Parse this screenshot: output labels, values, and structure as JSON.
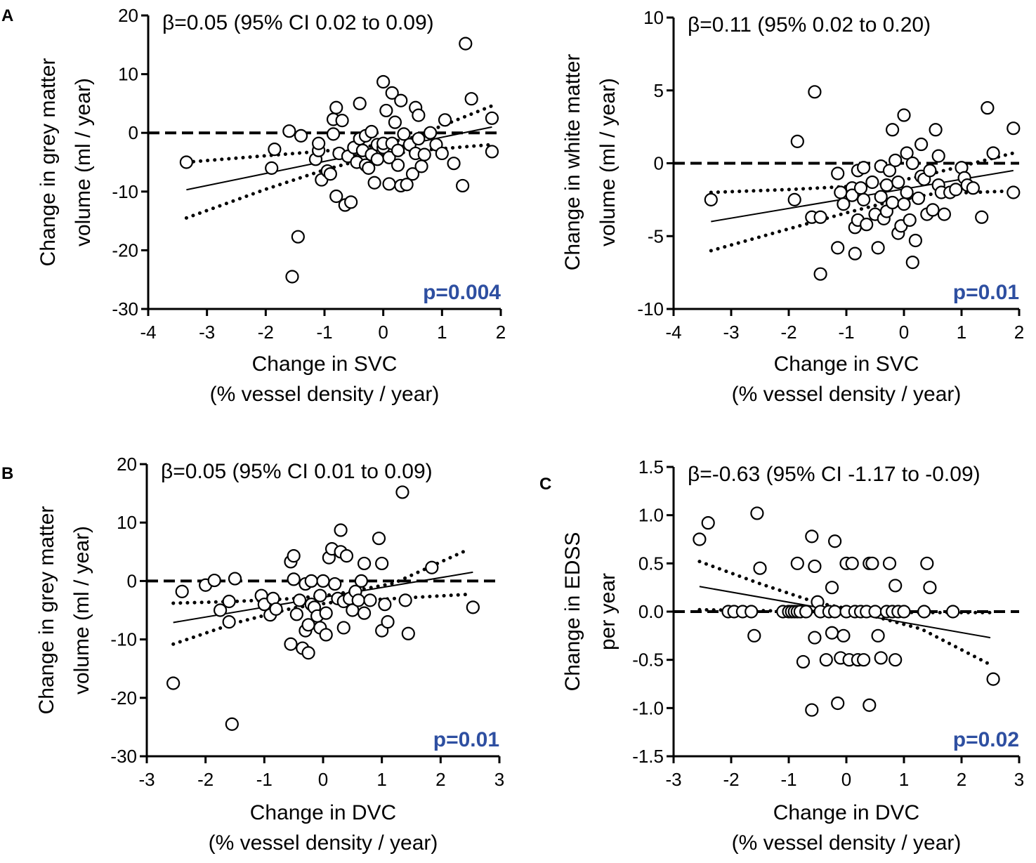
{
  "chart_data": [
    {
      "type": "scatter",
      "panel_label": "A",
      "annotation": "β=0.05 (95% CI 0.02 to 0.09)",
      "p_value": "p=0.004",
      "xlabel": [
        "Change in SVC",
        "(% vessel density / year)"
      ],
      "ylabel": [
        "Change in grey matter",
        "volume (ml / year)"
      ],
      "xlim": [
        -4,
        2
      ],
      "ylim": [
        -30,
        20
      ],
      "xticks": [
        -4,
        -3,
        -2,
        -1,
        0,
        1,
        2
      ],
      "yticks": [
        -30,
        -20,
        -10,
        0,
        10,
        20
      ],
      "reference_line": 0,
      "fit": {
        "x": [
          -3.35,
          1.85
        ],
        "y": [
          -9.7,
          1.0
        ]
      },
      "ci_lower": {
        "x": [
          -3.35,
          -2.0,
          -1.0,
          -0.3,
          0.5,
          1.85
        ],
        "y": [
          -14.5,
          -9.6,
          -6.3,
          -4.4,
          -3.1,
          -2.0
        ]
      },
      "ci_upper": {
        "x": [
          -3.35,
          -2.0,
          -1.0,
          -0.3,
          0.5,
          1.85
        ],
        "y": [
          -5.0,
          -3.9,
          -3.1,
          -2.4,
          -0.8,
          4.6
        ]
      },
      "points": [
        [
          -3.35,
          -5.0
        ],
        [
          -1.9,
          -6.0
        ],
        [
          -1.85,
          -2.8
        ],
        [
          -1.6,
          0.3
        ],
        [
          -1.55,
          -24.5
        ],
        [
          -1.45,
          -17.7
        ],
        [
          -1.4,
          -0.5
        ],
        [
          -1.15,
          -4.5
        ],
        [
          -1.1,
          -3.0
        ],
        [
          -1.05,
          -8.0
        ],
        [
          -1.1,
          -1.8
        ],
        [
          -0.95,
          -6.5
        ],
        [
          -0.9,
          -7.0
        ],
        [
          -0.85,
          2.3
        ],
        [
          -0.8,
          4.3
        ],
        [
          -0.85,
          -0.2
        ],
        [
          -0.8,
          -10.8
        ],
        [
          -0.75,
          -3.5
        ],
        [
          -0.7,
          2.1
        ],
        [
          -0.65,
          -12.3
        ],
        [
          -0.6,
          -4.0
        ],
        [
          -0.55,
          -11.8
        ],
        [
          -0.5,
          -2.5
        ],
        [
          -0.45,
          -5.0
        ],
        [
          -0.4,
          5.0
        ],
        [
          -0.4,
          -1.0
        ],
        [
          -0.35,
          -3.0
        ],
        [
          -0.3,
          -5.5
        ],
        [
          -0.3,
          -0.5
        ],
        [
          -0.25,
          -6.0
        ],
        [
          -0.2,
          0.2
        ],
        [
          -0.2,
          -3.7
        ],
        [
          -0.15,
          -8.5
        ],
        [
          -0.1,
          -2.0
        ],
        [
          -0.1,
          -4.5
        ],
        [
          0.0,
          -2.5
        ],
        [
          0.0,
          -1.8
        ],
        [
          0.0,
          8.7
        ],
        [
          0.05,
          3.8
        ],
        [
          0.1,
          -4.2
        ],
        [
          0.1,
          -8.7
        ],
        [
          0.15,
          6.8
        ],
        [
          0.15,
          -1.8
        ],
        [
          0.2,
          1.8
        ],
        [
          0.25,
          -5.5
        ],
        [
          0.25,
          -3.0
        ],
        [
          0.3,
          5.5
        ],
        [
          0.3,
          -9.0
        ],
        [
          0.35,
          -0.2
        ],
        [
          0.4,
          -8.8
        ],
        [
          0.45,
          -2.0
        ],
        [
          0.5,
          -7.0
        ],
        [
          0.55,
          4.3
        ],
        [
          0.55,
          -3.5
        ],
        [
          0.6,
          -1.0
        ],
        [
          0.6,
          3.0
        ],
        [
          0.65,
          -5.7
        ],
        [
          0.7,
          -3.7
        ],
        [
          0.8,
          0.0
        ],
        [
          0.9,
          -2.0
        ],
        [
          1.0,
          -3.5
        ],
        [
          1.05,
          2.2
        ],
        [
          1.2,
          -5.2
        ],
        [
          1.35,
          -9.0
        ],
        [
          1.4,
          15.2
        ],
        [
          1.5,
          5.8
        ],
        [
          1.85,
          2.5
        ],
        [
          1.85,
          -3.2
        ]
      ]
    },
    {
      "type": "scatter",
      "panel_label": "",
      "annotation": "β=0.11 (95% 0.02 to 0.20)",
      "p_value": "p=0.01",
      "xlabel": [
        "Change in SVC",
        "(% vessel density / year)"
      ],
      "ylabel": [
        "Change in white matter",
        "volume (ml / year)"
      ],
      "xlim": [
        -4,
        2
      ],
      "ylim": [
        -10,
        10
      ],
      "xticks": [
        -4,
        -3,
        -2,
        -1,
        0,
        1,
        2
      ],
      "yticks": [
        -10,
        -5,
        0,
        5,
        10
      ],
      "reference_line": 0,
      "fit": {
        "x": [
          -3.35,
          1.9
        ],
        "y": [
          -4.0,
          -0.5
        ]
      },
      "ci_lower": {
        "x": [
          -3.35,
          -2.0,
          -1.0,
          -0.3,
          0.5,
          1.9
        ],
        "y": [
          -6.0,
          -4.5,
          -3.4,
          -2.7,
          -2.1,
          -1.9
        ]
      },
      "ci_upper": {
        "x": [
          -3.35,
          -2.0,
          -1.0,
          -0.3,
          0.5,
          1.9
        ],
        "y": [
          -2.0,
          -1.8,
          -1.6,
          -1.4,
          -0.7,
          0.7
        ]
      },
      "points": [
        [
          -3.35,
          -2.5
        ],
        [
          -1.9,
          -2.5
        ],
        [
          -1.85,
          1.5
        ],
        [
          -1.6,
          -3.7
        ],
        [
          -1.55,
          4.9
        ],
        [
          -1.45,
          -7.6
        ],
        [
          -1.45,
          -3.7
        ],
        [
          -1.15,
          -5.8
        ],
        [
          -1.15,
          -0.7
        ],
        [
          -1.1,
          -2.0
        ],
        [
          -1.05,
          -2.8
        ],
        [
          -0.9,
          -1.7
        ],
        [
          -0.9,
          -2.2
        ],
        [
          -0.85,
          -6.2
        ],
        [
          -0.85,
          -4.4
        ],
        [
          -0.8,
          -0.5
        ],
        [
          -0.8,
          -3.9
        ],
        [
          -0.75,
          -1.7
        ],
        [
          -0.7,
          -0.3
        ],
        [
          -0.7,
          -2.5
        ],
        [
          -0.65,
          -4.2
        ],
        [
          -0.55,
          -1.3
        ],
        [
          -0.5,
          -3.5
        ],
        [
          -0.45,
          -5.8
        ],
        [
          -0.4,
          -2.3
        ],
        [
          -0.4,
          -0.2
        ],
        [
          -0.35,
          -3.8
        ],
        [
          -0.3,
          -1.5
        ],
        [
          -0.3,
          -3.3
        ],
        [
          -0.25,
          -0.5
        ],
        [
          -0.2,
          2.3
        ],
        [
          -0.2,
          -2.7
        ],
        [
          -0.15,
          0.2
        ],
        [
          -0.1,
          -4.8
        ],
        [
          -0.1,
          -1.3
        ],
        [
          -0.05,
          -4.3
        ],
        [
          0.0,
          -2.8
        ],
        [
          0.0,
          3.3
        ],
        [
          0.05,
          0.7
        ],
        [
          0.05,
          -2.0
        ],
        [
          0.1,
          -3.9
        ],
        [
          0.15,
          -6.8
        ],
        [
          0.15,
          0.0
        ],
        [
          0.2,
          -5.3
        ],
        [
          0.25,
          -2.4
        ],
        [
          0.3,
          -0.9
        ],
        [
          0.3,
          1.3
        ],
        [
          0.35,
          -1.1
        ],
        [
          0.4,
          -3.5
        ],
        [
          0.45,
          -0.5
        ],
        [
          0.5,
          -3.2
        ],
        [
          0.55,
          2.3
        ],
        [
          0.6,
          0.5
        ],
        [
          0.6,
          -1.5
        ],
        [
          0.65,
          -2.0
        ],
        [
          0.7,
          -3.5
        ],
        [
          0.8,
          -2.0
        ],
        [
          0.9,
          -1.8
        ],
        [
          1.0,
          -0.3
        ],
        [
          1.05,
          -1.0
        ],
        [
          1.1,
          -1.5
        ],
        [
          1.2,
          -1.7
        ],
        [
          1.35,
          -3.7
        ],
        [
          1.45,
          3.8
        ],
        [
          1.55,
          0.7
        ],
        [
          1.9,
          2.4
        ],
        [
          1.9,
          -2.0
        ]
      ]
    },
    {
      "type": "scatter",
      "panel_label": "B",
      "annotation": "β=0.05 (95% CI 0.01 to 0.09)",
      "p_value": "p=0.01",
      "xlabel": [
        "Change in DVC",
        "(% vessel density / year)"
      ],
      "ylabel": [
        "Change in grey matter",
        "volume (ml / year)"
      ],
      "xlim": [
        -3,
        3
      ],
      "ylim": [
        -30,
        20
      ],
      "xticks": [
        -3,
        -2,
        -1,
        0,
        1,
        2,
        3
      ],
      "yticks": [
        -30,
        -20,
        -10,
        0,
        10,
        20
      ],
      "reference_line": 0,
      "fit": {
        "x": [
          -2.55,
          2.55
        ],
        "y": [
          -7.1,
          1.5
        ]
      },
      "ci_lower": {
        "x": [
          -2.55,
          -1.5,
          -0.5,
          0.2,
          1.2,
          2.45
        ],
        "y": [
          -10.8,
          -7.2,
          -4.6,
          -3.6,
          -3.0,
          -2.3
        ]
      },
      "ci_upper": {
        "x": [
          -2.55,
          -1.5,
          -0.5,
          0.2,
          1.2,
          2.45
        ],
        "y": [
          -3.8,
          -3.5,
          -3.0,
          -2.3,
          -0.4,
          5.3
        ]
      },
      "points": [
        [
          -2.55,
          -17.5
        ],
        [
          -2.4,
          -1.8
        ],
        [
          -2.0,
          -0.7
        ],
        [
          -1.85,
          0.1
        ],
        [
          -1.75,
          -5.0
        ],
        [
          -1.6,
          -3.5
        ],
        [
          -1.6,
          -7.0
        ],
        [
          -1.55,
          -24.5
        ],
        [
          -1.5,
          0.4
        ],
        [
          -1.05,
          -2.5
        ],
        [
          -1.0,
          -4.0
        ],
        [
          -0.9,
          -5.8
        ],
        [
          -0.85,
          -3.0
        ],
        [
          -0.8,
          -4.8
        ],
        [
          -0.55,
          -10.8
        ],
        [
          -0.55,
          3.3
        ],
        [
          -0.5,
          4.3
        ],
        [
          -0.5,
          0.3
        ],
        [
          -0.45,
          -5.7
        ],
        [
          -0.4,
          -3.3
        ],
        [
          -0.35,
          -11.5
        ],
        [
          -0.3,
          -0.5
        ],
        [
          -0.3,
          -8.5
        ],
        [
          -0.25,
          -12.3
        ],
        [
          -0.25,
          -7.5
        ],
        [
          -0.2,
          -4.0
        ],
        [
          -0.2,
          0.0
        ],
        [
          -0.15,
          -4.5
        ],
        [
          -0.1,
          -6.0
        ],
        [
          -0.05,
          -8.0
        ],
        [
          -0.05,
          -2.5
        ],
        [
          0.0,
          0.0
        ],
        [
          0.05,
          -5.5
        ],
        [
          0.05,
          -9.2
        ],
        [
          0.1,
          4.0
        ],
        [
          0.15,
          5.5
        ],
        [
          0.2,
          -0.5
        ],
        [
          0.25,
          -3.0
        ],
        [
          0.3,
          8.7
        ],
        [
          0.3,
          5.0
        ],
        [
          0.35,
          -8.0
        ],
        [
          0.35,
          -3.5
        ],
        [
          0.4,
          4.3
        ],
        [
          0.45,
          -3.0
        ],
        [
          0.5,
          -5.0
        ],
        [
          0.55,
          -1.8
        ],
        [
          0.6,
          -3.3
        ],
        [
          0.65,
          0.0
        ],
        [
          0.7,
          -5.5
        ],
        [
          0.7,
          3.0
        ],
        [
          0.8,
          -3.3
        ],
        [
          0.95,
          7.3
        ],
        [
          1.0,
          -8.5
        ],
        [
          1.0,
          3.0
        ],
        [
          1.05,
          -4.0
        ],
        [
          1.1,
          -7.0
        ],
        [
          1.35,
          15.2
        ],
        [
          1.4,
          -3.3
        ],
        [
          1.45,
          -9.0
        ],
        [
          1.85,
          2.3
        ],
        [
          2.55,
          -4.5
        ]
      ]
    },
    {
      "type": "scatter",
      "panel_label": "C",
      "annotation": "β=-0.63 (95% CI -1.17 to -0.09)",
      "p_value": "p=0.02",
      "xlabel": [
        "Change in DVC",
        "(% vessel density / year)"
      ],
      "ylabel": [
        "Change in EDSS",
        "per year"
      ],
      "xlim": [
        -3,
        3
      ],
      "ylim": [
        -1.5,
        1.5
      ],
      "xticks": [
        -3,
        -2,
        -1,
        0,
        1,
        2,
        3
      ],
      "yticks": [
        -1.5,
        -1.0,
        -0.5,
        0.0,
        0.5,
        1.0,
        1.5
      ],
      "reference_line": 0,
      "fit": {
        "x": [
          -2.55,
          2.5
        ],
        "y": [
          0.26,
          -0.27
        ]
      },
      "ci_lower": {
        "x": [
          -2.55,
          -1.5,
          -0.5,
          0.3,
          1.3,
          2.5
        ],
        "y": [
          0.02,
          0.01,
          0.0,
          -0.02,
          -0.18,
          -0.55
        ]
      },
      "ci_upper": {
        "x": [
          -2.55,
          -1.5,
          -0.5,
          0.3,
          1.3,
          2.5
        ],
        "y": [
          0.52,
          0.29,
          0.09,
          0.0,
          -0.01,
          -0.01
        ]
      },
      "points": [
        [
          -2.55,
          0.75
        ],
        [
          -2.4,
          0.92
        ],
        [
          -2.05,
          0.0
        ],
        [
          -1.95,
          0.0
        ],
        [
          -1.8,
          0.0
        ],
        [
          -1.65,
          0.0
        ],
        [
          -1.6,
          -0.25
        ],
        [
          -1.55,
          1.02
        ],
        [
          -1.5,
          0.45
        ],
        [
          -1.1,
          0.0
        ],
        [
          -1.0,
          0.0
        ],
        [
          -0.95,
          0.0
        ],
        [
          -0.9,
          0.0
        ],
        [
          -0.85,
          0.0
        ],
        [
          -0.8,
          0.0
        ],
        [
          -0.85,
          0.5
        ],
        [
          -0.75,
          -0.52
        ],
        [
          -0.7,
          0.0
        ],
        [
          -0.6,
          -1.02
        ],
        [
          -0.6,
          0.78
        ],
        [
          -0.55,
          0.47
        ],
        [
          -0.55,
          -0.27
        ],
        [
          -0.5,
          0.1
        ],
        [
          -0.45,
          0.0
        ],
        [
          -0.35,
          -0.5
        ],
        [
          -0.3,
          0.0
        ],
        [
          -0.25,
          0.25
        ],
        [
          -0.25,
          -0.22
        ],
        [
          -0.2,
          0.73
        ],
        [
          -0.2,
          0.0
        ],
        [
          -0.15,
          -0.95
        ],
        [
          -0.1,
          -0.48
        ],
        [
          -0.05,
          -0.25
        ],
        [
          0.0,
          0.0
        ],
        [
          0.0,
          0.5
        ],
        [
          0.05,
          -0.5
        ],
        [
          0.1,
          0.5
        ],
        [
          0.15,
          0.0
        ],
        [
          0.2,
          -0.5
        ],
        [
          0.25,
          0.0
        ],
        [
          0.3,
          -0.5
        ],
        [
          0.35,
          0.0
        ],
        [
          0.4,
          0.5
        ],
        [
          0.4,
          -0.97
        ],
        [
          0.45,
          0.5
        ],
        [
          0.5,
          0.0
        ],
        [
          0.55,
          -0.25
        ],
        [
          0.6,
          -0.48
        ],
        [
          0.7,
          0.0
        ],
        [
          0.75,
          0.5
        ],
        [
          0.8,
          0.0
        ],
        [
          0.85,
          -0.5
        ],
        [
          0.85,
          0.27
        ],
        [
          0.9,
          0.0
        ],
        [
          1.0,
          0.0
        ],
        [
          1.35,
          0.0
        ],
        [
          1.4,
          0.5
        ],
        [
          1.45,
          0.25
        ],
        [
          1.85,
          0.0
        ],
        [
          2.55,
          -0.7
        ]
      ]
    }
  ]
}
